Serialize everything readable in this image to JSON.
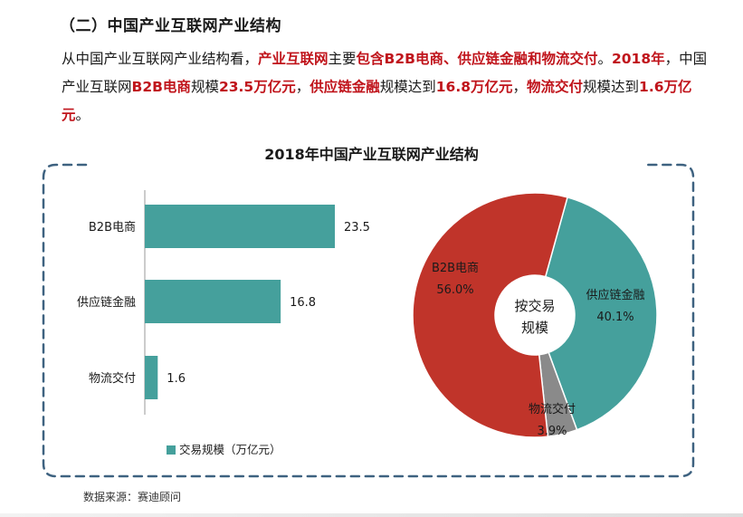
{
  "section_title": "（二）中国产业互联网产业结构",
  "paragraph": [
    {
      "t": "从中国产业互联网产业结构看，",
      "h": false
    },
    {
      "t": "产业互联网",
      "h": true
    },
    {
      "t": "主要",
      "h": false
    },
    {
      "t": "包含B2B电商、供应链金融和物流交付",
      "h": true
    },
    {
      "t": "。",
      "h": false
    },
    {
      "t": "2018年",
      "h": true
    },
    {
      "t": "，中国产业互联网",
      "h": false
    },
    {
      "t": "B2B电商",
      "h": true
    },
    {
      "t": "规模",
      "h": false
    },
    {
      "t": "23.5万亿元",
      "h": true
    },
    {
      "t": "，",
      "h": false
    },
    {
      "t": "供应链金融",
      "h": true
    },
    {
      "t": "规模达到",
      "h": false
    },
    {
      "t": "16.8万亿元",
      "h": true
    },
    {
      "t": "，",
      "h": false
    },
    {
      "t": "物流交付",
      "h": true
    },
    {
      "t": "规模达到",
      "h": false
    },
    {
      "t": "1.6万亿元",
      "h": true
    },
    {
      "t": "。",
      "h": false
    }
  ],
  "source": "数据来源：赛迪顾问",
  "colors": {
    "bar": "#45a09c",
    "b2b": "#c0342a",
    "finance": "#45a09c",
    "logistics": "#8a8a8a",
    "frame": "#3e6280"
  },
  "chart_data": [
    {
      "type": "bar",
      "orientation": "horizontal",
      "title": "2018年中国产业互联网产业结构",
      "categories": [
        "B2B电商",
        "供应链金融",
        "物流交付"
      ],
      "values": [
        23.5,
        16.8,
        1.6
      ],
      "legend": "交易规模（万亿元）",
      "legend_position": "bottom",
      "grid": false
    },
    {
      "type": "pie",
      "style": "donut",
      "center_label": "按交易规模",
      "center_label_lines": [
        "按交易",
        "规模"
      ],
      "slices": [
        {
          "label": "B2B电商",
          "value": 56.0,
          "value_label": "56.0%"
        },
        {
          "label": "供应链金融",
          "value": 40.1,
          "value_label": "40.1%"
        },
        {
          "label": "物流交付",
          "value": 3.9,
          "value_label": "3.9%"
        }
      ]
    }
  ]
}
